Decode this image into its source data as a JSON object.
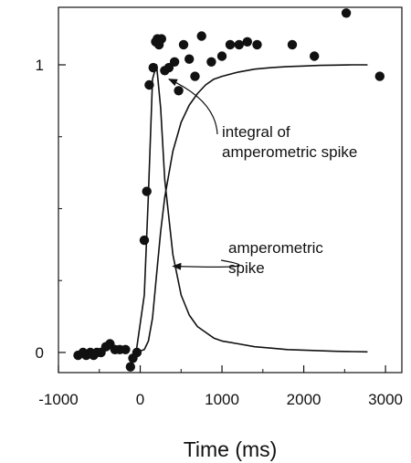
{
  "chart_data": {
    "type": "scatter",
    "title": "",
    "xlabel": "Time (ms)",
    "ylabel": "",
    "xlim": [
      -1000,
      3200
    ],
    "ylim": [
      -0.07,
      1.2
    ],
    "xticks": [
      -1000,
      0,
      1000,
      2000,
      3000
    ],
    "xtick_labels": [
      "-1000",
      "0",
      "1000",
      "2000",
      "3000"
    ],
    "yticks": [
      0,
      1
    ],
    "ytick_labels": [
      "0",
      "1"
    ],
    "grid": false,
    "series": [
      {
        "kind": "points",
        "marker": "filled-circle",
        "x": [
          -760,
          -700,
          -660,
          -610,
          -570,
          -530,
          -480,
          -420,
          -370,
          -310,
          -250,
          -180,
          -120,
          -90,
          -40,
          50,
          80,
          110,
          160,
          190,
          210,
          230,
          260,
          300,
          350,
          420,
          470,
          530,
          600,
          670,
          750,
          870,
          1000,
          1100,
          1210,
          1310,
          1430,
          1860,
          2130,
          2520,
          2930
        ],
        "y": [
          -0.01,
          0.0,
          -0.01,
          0.0,
          -0.01,
          0.0,
          0.0,
          0.02,
          0.03,
          0.01,
          0.01,
          0.01,
          -0.05,
          -0.02,
          0.0,
          0.39,
          0.56,
          0.93,
          0.99,
          1.08,
          1.09,
          1.07,
          1.09,
          0.98,
          0.99,
          1.01,
          0.91,
          1.07,
          1.02,
          0.96,
          1.1,
          1.01,
          1.03,
          1.07,
          1.07,
          1.08,
          1.07,
          1.07,
          1.03,
          1.18,
          0.96
        ]
      },
      {
        "kind": "line",
        "x": [
          -50,
          50,
          100,
          150,
          200,
          250,
          300,
          400,
          500,
          600,
          700,
          800,
          900,
          1000,
          1200,
          1400,
          1600,
          1800,
          2000,
          2200,
          2400,
          2600,
          2780
        ],
        "y": [
          0.0,
          0.2,
          0.55,
          0.95,
          1.0,
          0.85,
          0.6,
          0.34,
          0.2,
          0.13,
          0.09,
          0.07,
          0.05,
          0.04,
          0.03,
          0.02,
          0.015,
          0.01,
          0.008,
          0.006,
          0.004,
          0.003,
          0.002
        ]
      },
      {
        "kind": "line",
        "x": [
          -50,
          50,
          100,
          150,
          200,
          250,
          300,
          400,
          500,
          600,
          700,
          800,
          900,
          1000,
          1200,
          1400,
          1600,
          1800,
          2000,
          2200,
          2400,
          2600,
          2780
        ],
        "y": [
          0.0,
          0.01,
          0.04,
          0.12,
          0.27,
          0.42,
          0.54,
          0.7,
          0.8,
          0.86,
          0.9,
          0.93,
          0.95,
          0.96,
          0.975,
          0.985,
          0.99,
          0.994,
          0.996,
          0.998,
          0.999,
          1.0,
          1.0
        ]
      }
    ],
    "annotations": [
      {
        "lines": [
          "integral of",
          "amperometric spike"
        ],
        "arrow_to": [
          350,
          0.95
        ]
      },
      {
        "lines": [
          "amperometric",
          "spike"
        ],
        "arrow_to": [
          400,
          0.3
        ]
      }
    ]
  }
}
